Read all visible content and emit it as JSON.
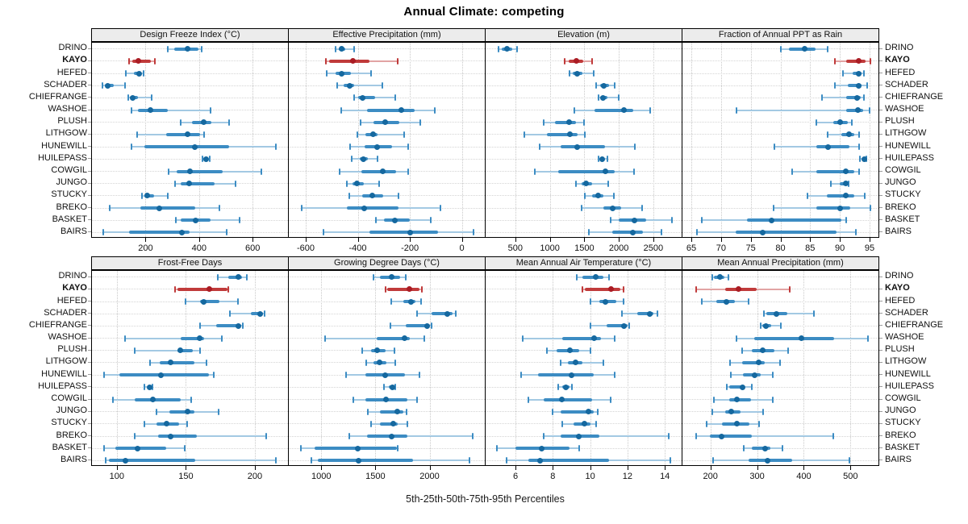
{
  "figure": {
    "title": "Annual Climate: competing",
    "caption": "5th-25th-50th-75th-95th Percentiles"
  },
  "chart_data": {
    "type": "dotplot-percentile-intervals",
    "title": "Annual Climate: competing",
    "caption": "5th-25th-50th-75th-95th Percentiles",
    "percentiles": [
      5,
      25,
      50,
      75,
      95
    ],
    "legend_position": "none",
    "grid": "dotted",
    "layout": {
      "rows": 2,
      "cols": 4
    },
    "stations": [
      "DRINO",
      "KAYO",
      "HEFED",
      "SCHADER",
      "CHIEFRANGE",
      "WASHOE",
      "PLUSH",
      "LITHGOW",
      "HUNEWILL",
      "HUILEPASS",
      "COWGIL",
      "JUNGO",
      "STUCKY",
      "BREKO",
      "BASKET",
      "BAIRS"
    ],
    "highlight_station": "KAYO",
    "colors": {
      "blue_dot": "#15689f",
      "blue_box": "#3c8cc3",
      "blue_whisker": "#a3c9e3",
      "red_dot": "#aa1c24",
      "red_box": "#c03a3a",
      "red_whisker": "#e2a4a4",
      "strip_bg": "#ececec",
      "grid": "#cccccc"
    },
    "panels": [
      {
        "title": "Design Freeze Index (°C)",
        "xlim": [
          0,
          732
        ],
        "ticks": [
          200,
          400,
          600
        ],
        "values": [
          [
            282,
            307,
            357,
            397,
            411
          ],
          [
            137,
            149,
            174,
            219,
            234
          ],
          [
            125,
            157,
            177,
            185,
            194
          ],
          [
            40,
            47,
            60,
            82,
            122
          ],
          [
            135,
            142,
            152,
            172,
            222
          ],
          [
            147,
            172,
            217,
            282,
            442
          ],
          [
            332,
            372,
            417,
            447,
            512
          ],
          [
            170,
            277,
            357,
            402,
            419
          ],
          [
            147,
            197,
            385,
            512,
            687
          ],
          [
            412,
            417,
            427,
            435,
            440
          ],
          [
            287,
            317,
            365,
            487,
            632
          ],
          [
            309,
            332,
            364,
            457,
            535
          ],
          [
            187,
            197,
            205,
            232,
            282
          ],
          [
            65,
            182,
            252,
            387,
            477
          ],
          [
            312,
            332,
            387,
            442,
            552
          ],
          [
            42,
            137,
            337,
            365,
            504
          ]
        ]
      },
      {
        "title": "Effective Precipitation (mm)",
        "xlim": [
          -665,
          88
        ],
        "ticks": [
          -600,
          -400,
          -200,
          0
        ],
        "values": [
          [
            -484,
            -473,
            -462,
            -448,
            -414
          ],
          [
            -522,
            -509,
            -420,
            -355,
            -247
          ],
          [
            -518,
            -486,
            -461,
            -427,
            -350
          ],
          [
            -478,
            -453,
            -430,
            -414,
            -305
          ],
          [
            -415,
            -398,
            -383,
            -334,
            -257
          ],
          [
            -463,
            -365,
            -233,
            -180,
            -105
          ],
          [
            -388,
            -339,
            -295,
            -241,
            -161
          ],
          [
            -403,
            -370,
            -341,
            -324,
            -221
          ],
          [
            -430,
            -375,
            -327,
            -267,
            -205
          ],
          [
            -424,
            -394,
            -378,
            -363,
            -324
          ],
          [
            -470,
            -386,
            -305,
            -252,
            -205
          ],
          [
            -442,
            -419,
            -404,
            -378,
            -319
          ],
          [
            -432,
            -383,
            -345,
            -303,
            -244
          ],
          [
            -615,
            -442,
            -375,
            -244,
            -84
          ],
          [
            -329,
            -301,
            -259,
            -200,
            -121
          ],
          [
            -533,
            -355,
            -200,
            -92,
            45
          ]
        ]
      },
      {
        "title": "Elevation (m)",
        "xlim": [
          70,
          2910
        ],
        "ticks": [
          500,
          1000,
          1500,
          2000,
          2500
        ],
        "values": [
          [
            255,
            298,
            383,
            453,
            527
          ],
          [
            1220,
            1270,
            1385,
            1490,
            1610
          ],
          [
            1280,
            1335,
            1400,
            1470,
            1640
          ],
          [
            1665,
            1725,
            1785,
            1855,
            1945
          ],
          [
            1700,
            1725,
            1765,
            1840,
            2000
          ],
          [
            1355,
            1650,
            2070,
            2210,
            2455
          ],
          [
            910,
            1075,
            1280,
            1375,
            1490
          ],
          [
            635,
            955,
            1285,
            1400,
            1505
          ],
          [
            850,
            1160,
            1400,
            1805,
            2230
          ],
          [
            1700,
            1725,
            1755,
            1790,
            1830
          ],
          [
            780,
            1120,
            1805,
            1940,
            2220
          ],
          [
            1375,
            1465,
            1530,
            1610,
            1850
          ],
          [
            1510,
            1610,
            1700,
            1775,
            1930
          ],
          [
            1455,
            1775,
            1910,
            2030,
            2335
          ],
          [
            1880,
            2000,
            2225,
            2400,
            2765
          ],
          [
            1570,
            1900,
            2205,
            2350,
            2615
          ]
        ]
      },
      {
        "title": "Fraction of Annual PPT as Rain",
        "xlim": [
          63.5,
          96.5
        ],
        "ticks": [
          65,
          70,
          75,
          80,
          85,
          90,
          95
        ],
        "values": [
          [
            80.1,
            81.4,
            84.1,
            85.9,
            88
          ],
          [
            89.1,
            91.1,
            93.2,
            94.3,
            95.1
          ],
          [
            90.5,
            92.2,
            93.1,
            93.6,
            94.1
          ],
          [
            89.2,
            91.3,
            93.1,
            93.6,
            94.6
          ],
          [
            87,
            91,
            92.9,
            93.5,
            94.1
          ],
          [
            72.6,
            91,
            93,
            93.9,
            95
          ],
          [
            86,
            88.9,
            90.1,
            91.3,
            92
          ],
          [
            88,
            90.2,
            91.5,
            92.4,
            93.2
          ],
          [
            79,
            86,
            88,
            91.6,
            93.2
          ],
          [
            93.4,
            93.8,
            94.1,
            94.3,
            94.5
          ],
          [
            82,
            86,
            91,
            92.4,
            93.2
          ],
          [
            88.5,
            90,
            91,
            91.3,
            91.5
          ],
          [
            84.5,
            87.8,
            91,
            92.4,
            94.2
          ],
          [
            78.8,
            86,
            90,
            91.7,
            95.2
          ],
          [
            66.7,
            74.4,
            78.5,
            90.2,
            91.1
          ],
          [
            66,
            72.4,
            77,
            89.4,
            92.7
          ]
        ]
      },
      {
        "title": "Frost-Free Days",
        "xlim": [
          82,
          224
        ],
        "ticks": [
          100,
          150,
          200
        ],
        "values": [
          [
            173,
            181,
            188,
            191,
            194
          ],
          [
            142,
            144,
            167,
            180,
            181
          ],
          [
            150,
            160,
            163,
            174,
            188
          ],
          [
            182,
            197,
            204,
            206,
            207
          ],
          [
            160,
            172,
            188,
            190,
            191
          ],
          [
            106,
            146,
            160,
            163,
            176
          ],
          [
            113,
            144,
            146,
            155,
            160
          ],
          [
            124,
            131,
            139,
            156,
            165
          ],
          [
            91,
            102,
            132,
            167,
            170
          ],
          [
            120,
            122,
            124,
            125,
            126
          ],
          [
            97,
            113,
            126,
            146,
            154
          ],
          [
            129,
            138,
            151,
            156,
            174
          ],
          [
            120,
            129,
            136,
            145,
            151
          ],
          [
            113,
            130,
            139,
            158,
            208
          ],
          [
            91,
            99,
            115,
            136,
            149
          ],
          [
            92,
            94,
            106,
            157,
            215
          ]
        ]
      },
      {
        "title": "Growing Degree Days (°C)",
        "xlim": [
          700,
          2510
        ],
        "ticks": [
          1000,
          1500,
          2000
        ],
        "values": [
          [
            1485,
            1545,
            1650,
            1725,
            1780
          ],
          [
            1590,
            1610,
            1815,
            1905,
            1930
          ],
          [
            1645,
            1755,
            1825,
            1870,
            1920
          ],
          [
            1885,
            2015,
            2160,
            2215,
            2245
          ],
          [
            1635,
            1780,
            1980,
            2000,
            2015
          ],
          [
            1035,
            1510,
            1770,
            1820,
            1950
          ],
          [
            1380,
            1460,
            1515,
            1595,
            1675
          ],
          [
            1415,
            1480,
            1540,
            1605,
            1680
          ],
          [
            1230,
            1405,
            1590,
            1775,
            1905
          ],
          [
            1580,
            1620,
            1655,
            1675,
            1685
          ],
          [
            1295,
            1405,
            1595,
            1795,
            1885
          ],
          [
            1430,
            1540,
            1700,
            1755,
            1790
          ],
          [
            1460,
            1545,
            1665,
            1705,
            1795
          ],
          [
            1255,
            1420,
            1650,
            1795,
            2395
          ],
          [
            815,
            935,
            1335,
            1695,
            1705
          ],
          [
            910,
            965,
            1345,
            1850,
            2370
          ]
        ]
      },
      {
        "title": "Mean Annual Air Temperature (°C)",
        "xlim": [
          4.4,
          14.9
        ],
        "ticks": [
          6,
          8,
          10,
          12,
          14
        ],
        "values": [
          [
            9.3,
            9.6,
            10.3,
            10.7,
            11.0
          ],
          [
            9.6,
            9.7,
            11.1,
            11.6,
            11.8
          ],
          [
            10.0,
            10.5,
            10.8,
            11.4,
            11.8
          ],
          [
            11.7,
            12.5,
            13.2,
            13.4,
            13.6
          ],
          [
            10.0,
            10.9,
            11.8,
            12.0,
            12.1
          ],
          [
            6.4,
            8.5,
            10.2,
            10.6,
            11.3
          ],
          [
            7.7,
            8.2,
            8.9,
            9.4,
            10.0
          ],
          [
            8.4,
            8.8,
            9.2,
            9.6,
            10.7
          ],
          [
            6.3,
            7.2,
            9.0,
            10.2,
            11.3
          ],
          [
            8.3,
            8.5,
            8.7,
            8.9,
            9.0
          ],
          [
            6.7,
            7.5,
            8.5,
            10.1,
            11.1
          ],
          [
            8.0,
            8.4,
            9.9,
            10.2,
            10.4
          ],
          [
            8.5,
            9.1,
            9.7,
            10.0,
            10.3
          ],
          [
            7.5,
            8.4,
            9.4,
            10.5,
            14.2
          ],
          [
            5.0,
            6.0,
            7.4,
            8.9,
            9.4
          ],
          [
            5.5,
            6.7,
            7.3,
            11.0,
            14.3
          ]
        ]
      },
      {
        "title": "Mean Annual Precipitation (mm)",
        "xlim": [
          140,
          560
        ],
        "ticks": [
          200,
          300,
          400,
          500
        ],
        "values": [
          [
            204,
            207,
            220,
            230,
            238
          ],
          [
            170,
            232,
            260,
            300,
            370
          ],
          [
            182,
            212,
            234,
            252,
            282
          ],
          [
            315,
            320,
            342,
            365,
            422
          ],
          [
            307,
            311,
            318,
            331,
            350
          ],
          [
            255,
            293,
            395,
            465,
            537
          ],
          [
            268,
            288,
            312,
            338,
            367
          ],
          [
            242,
            268,
            304,
            317,
            349
          ],
          [
            243,
            270,
            295,
            308,
            334
          ],
          [
            235,
            240,
            268,
            273,
            288
          ],
          [
            208,
            241,
            257,
            287,
            334
          ],
          [
            204,
            231,
            244,
            264,
            313
          ],
          [
            191,
            225,
            257,
            283,
            304
          ],
          [
            170,
            198,
            224,
            288,
            463
          ],
          [
            271,
            288,
            317,
            328,
            354
          ],
          [
            206,
            281,
            322,
            375,
            497
          ]
        ]
      }
    ]
  }
}
